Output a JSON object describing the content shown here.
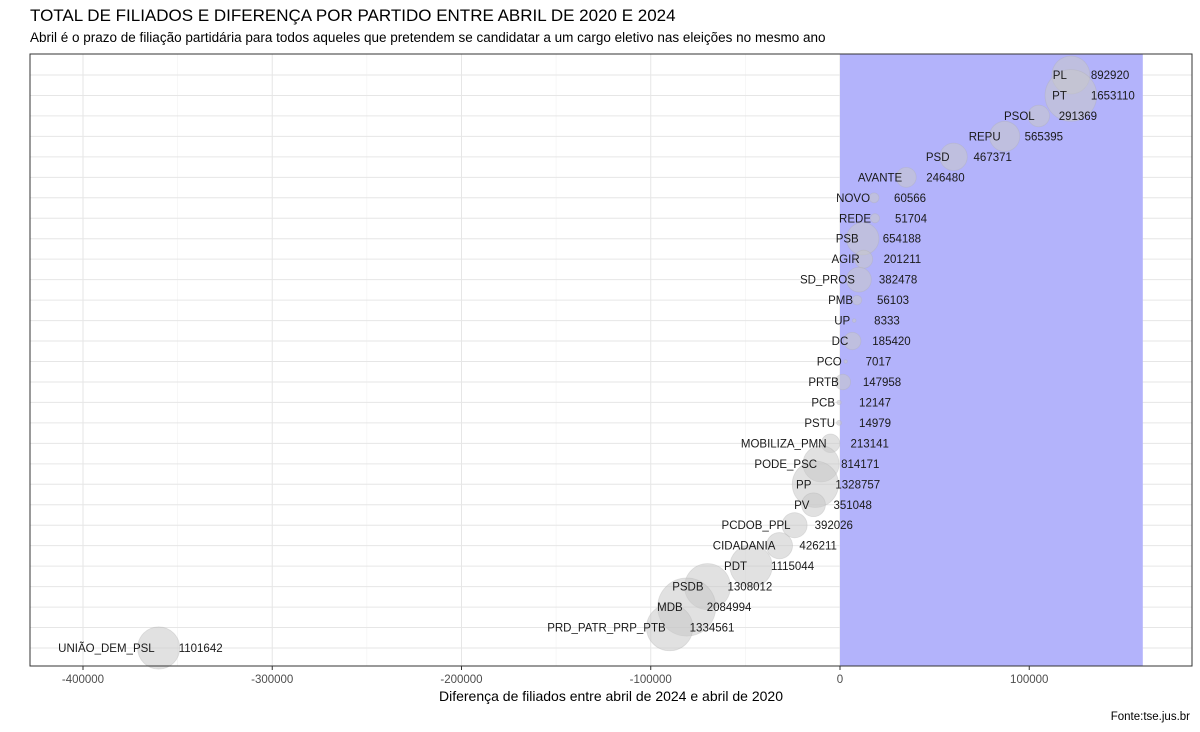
{
  "title": "TOTAL DE FILIADOS E DIFERENÇA POR PARTIDO ENTRE ABRIL DE 2020 E 2024",
  "subtitle": "Abril é o prazo de filiação partidária para todos aqueles que pretendem se candidatar a um cargo eletivo nas eleições no mesmo ano",
  "caption": "Fonte:tse.jus.br",
  "colors": {
    "highlight": "#b3b3fb",
    "bubble": "#c8c8c8",
    "grid": "#e6e6e6",
    "panel_border": "#333333"
  },
  "chart_data": {
    "type": "scatter",
    "title": "TOTAL DE FILIADOS E DIFERENÇA POR PARTIDO ENTRE ABRIL DE 2020 E 2024",
    "xlabel": "Diferença de filiados entre abril de 2024 e abril de 2020",
    "ylabel": "",
    "xlim": [
      -428000,
      186000
    ],
    "xticks": [
      -400000,
      -300000,
      -200000,
      -100000,
      0,
      100000
    ],
    "xtick_labels": [
      "-400000",
      "-300000",
      "-200000",
      "-100000",
      "0",
      "100000"
    ],
    "grid": true,
    "highlight_range": [
      0,
      160000
    ],
    "size_encoding": "total de filiados",
    "points": [
      {
        "party": "PL",
        "diff": 122000,
        "total": "892920"
      },
      {
        "party": "PT",
        "diff": 122000,
        "total": "1653110"
      },
      {
        "party": "PSOL",
        "diff": 105000,
        "total": "291369"
      },
      {
        "party": "REPU",
        "diff": 87000,
        "total": "565395"
      },
      {
        "party": "PSD",
        "diff": 60000,
        "total": "467371"
      },
      {
        "party": "AVANTE",
        "diff": 35000,
        "total": "246480"
      },
      {
        "party": "NOVO",
        "diff": 18000,
        "total": "60566"
      },
      {
        "party": "REDE",
        "diff": 18500,
        "total": "51704"
      },
      {
        "party": "PSB",
        "diff": 12000,
        "total": "654188"
      },
      {
        "party": "AGIR",
        "diff": 12500,
        "total": "201211"
      },
      {
        "party": "SD_PROS",
        "diff": 10000,
        "total": "382478"
      },
      {
        "party": "PMB",
        "diff": 9000,
        "total": "56103"
      },
      {
        "party": "UP",
        "diff": 7500,
        "total": "8333"
      },
      {
        "party": "DC",
        "diff": 6500,
        "total": "185420"
      },
      {
        "party": "PCO",
        "diff": 3000,
        "total": "7017"
      },
      {
        "party": "PRTB",
        "diff": 1500,
        "total": "147958"
      },
      {
        "party": "PCB",
        "diff": -500,
        "total": "12147"
      },
      {
        "party": "PSTU",
        "diff": -500,
        "total": "14979"
      },
      {
        "party": "MOBILIZA_PMN",
        "diff": -5000,
        "total": "213141"
      },
      {
        "party": "PODE_PSC",
        "diff": -10000,
        "total": "814171"
      },
      {
        "party": "PP",
        "diff": -13000,
        "total": "1328757"
      },
      {
        "party": "PV",
        "diff": -14000,
        "total": "351048"
      },
      {
        "party": "PCDOB_PPL",
        "diff": -24000,
        "total": "392026"
      },
      {
        "party": "CIDADANIA",
        "diff": -32000,
        "total": "426211"
      },
      {
        "party": "PDT",
        "diff": -47000,
        "total": "1115044"
      },
      {
        "party": "PSDB",
        "diff": -70000,
        "total": "1308012"
      },
      {
        "party": "MDB",
        "diff": -81000,
        "total": "2084994"
      },
      {
        "party": "PRD_PATR_PRP_PTB",
        "diff": -90000,
        "total": "1334561"
      },
      {
        "party": "UNIÃO_DEM_PSL",
        "diff": -360000,
        "total": "1101642"
      }
    ]
  }
}
